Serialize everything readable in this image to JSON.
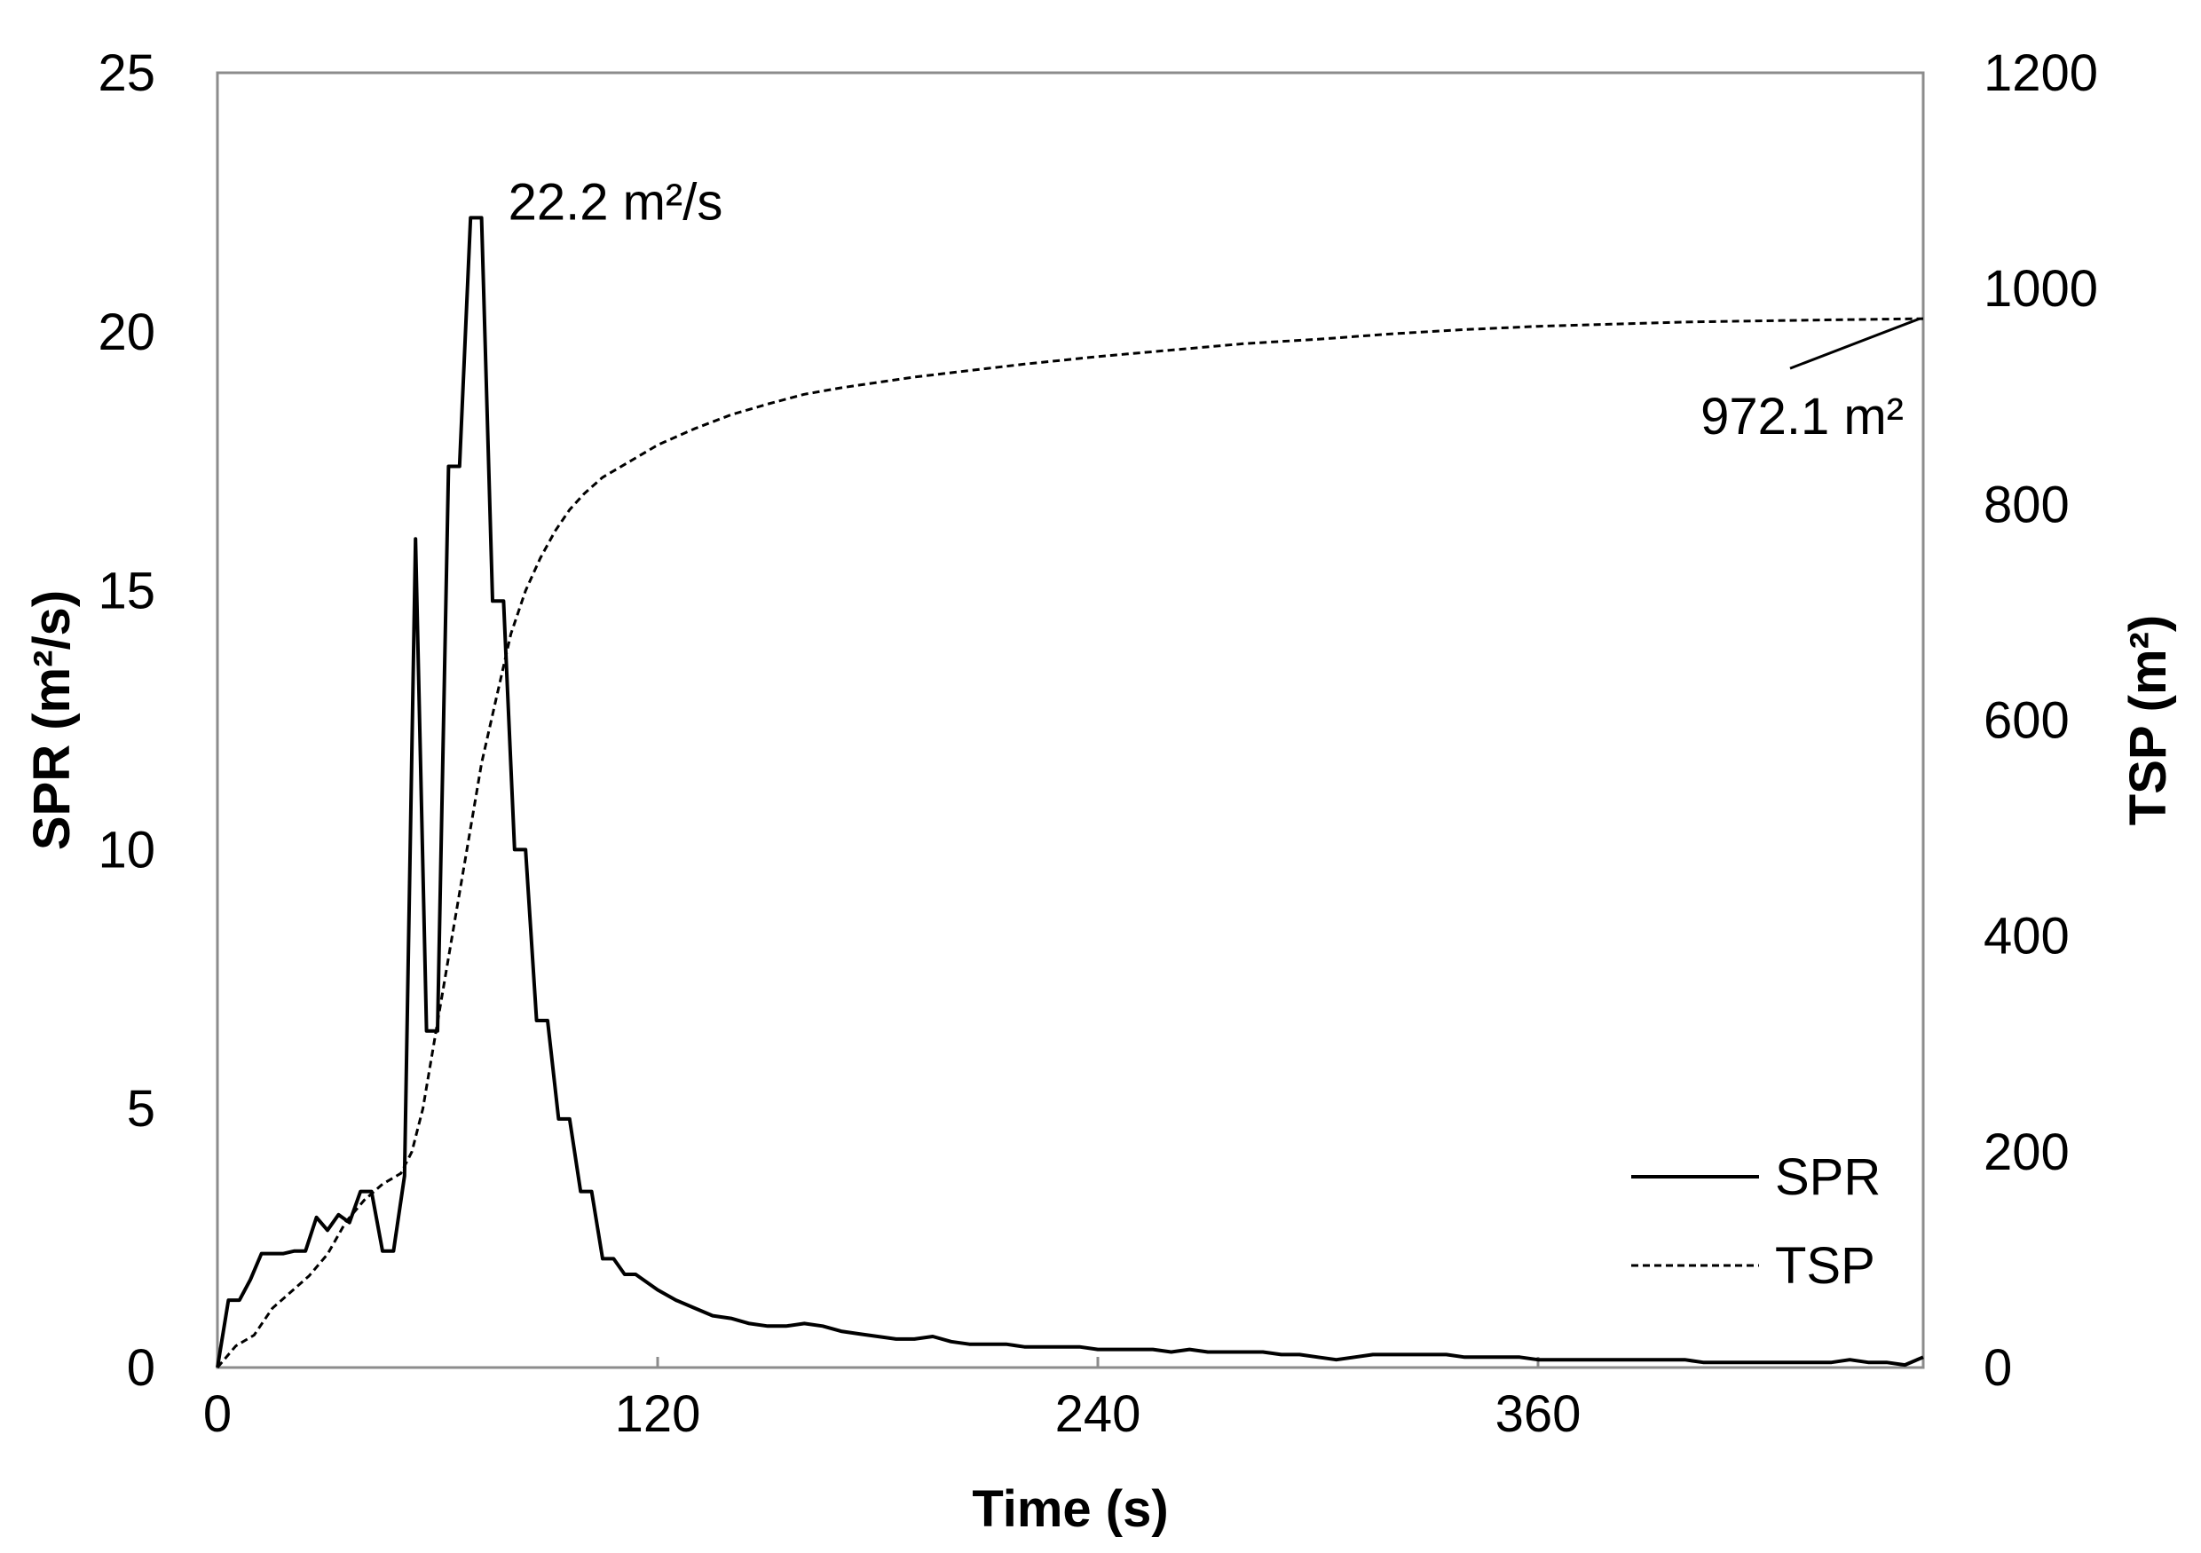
{
  "chart_data": {
    "type": "line",
    "xlabel": "Time (s)",
    "ylabel": "SPR (m²/s)",
    "y2label": "TSP (m²)",
    "xlim": [
      0,
      465
    ],
    "ylim": [
      0,
      25
    ],
    "y2lim": [
      0,
      1200
    ],
    "xticks": [
      0,
      120,
      240,
      360
    ],
    "yticks": [
      0,
      5,
      10,
      15,
      20,
      25
    ],
    "y2ticks": [
      0,
      200,
      400,
      600,
      800,
      1000,
      1200
    ],
    "grid": false,
    "legend_position": "bottom-right",
    "series": [
      {
        "name": "SPR",
        "axis": "left",
        "style": "solid",
        "x": [
          0,
          3,
          6,
          9,
          12,
          15,
          18,
          21,
          24,
          27,
          30,
          33,
          36,
          39,
          42,
          45,
          48,
          51,
          54,
          57,
          60,
          63,
          66,
          69,
          72,
          75,
          78,
          81,
          84,
          87,
          90,
          93,
          96,
          99,
          102,
          105,
          108,
          111,
          114,
          117,
          120,
          125,
          130,
          135,
          140,
          145,
          150,
          155,
          160,
          165,
          170,
          175,
          180,
          185,
          190,
          195,
          200,
          205,
          210,
          215,
          220,
          225,
          230,
          235,
          240,
          245,
          250,
          255,
          260,
          265,
          270,
          275,
          280,
          285,
          290,
          295,
          300,
          305,
          310,
          315,
          320,
          325,
          330,
          335,
          340,
          345,
          350,
          355,
          360,
          365,
          370,
          375,
          380,
          385,
          390,
          395,
          400,
          405,
          410,
          415,
          420,
          425,
          430,
          435,
          440,
          445,
          450,
          455,
          460,
          465
        ],
        "values": [
          0,
          1.3,
          1.3,
          1.7,
          2.2,
          2.2,
          2.2,
          2.25,
          2.25,
          2.9,
          2.65,
          2.95,
          2.8,
          3.4,
          3.4,
          2.25,
          2.25,
          3.7,
          16.0,
          6.5,
          6.5,
          17.4,
          17.4,
          22.2,
          22.2,
          14.8,
          14.8,
          10.0,
          10.0,
          6.7,
          6.7,
          4.8,
          4.8,
          3.4,
          3.4,
          2.1,
          2.1,
          1.8,
          1.8,
          1.65,
          1.5,
          1.3,
          1.15,
          1.0,
          0.95,
          0.85,
          0.8,
          0.8,
          0.85,
          0.8,
          0.7,
          0.65,
          0.6,
          0.55,
          0.55,
          0.6,
          0.5,
          0.45,
          0.45,
          0.45,
          0.4,
          0.4,
          0.4,
          0.4,
          0.35,
          0.35,
          0.35,
          0.35,
          0.3,
          0.35,
          0.3,
          0.3,
          0.3,
          0.3,
          0.25,
          0.25,
          0.2,
          0.15,
          0.2,
          0.25,
          0.25,
          0.25,
          0.25,
          0.25,
          0.2,
          0.2,
          0.2,
          0.2,
          0.15,
          0.15,
          0.15,
          0.15,
          0.15,
          0.15,
          0.15,
          0.15,
          0.15,
          0.1,
          0.1,
          0.1,
          0.1,
          0.1,
          0.1,
          0.1,
          0.1,
          0.15,
          0.1,
          0.1,
          0.05,
          0.2
        ]
      },
      {
        "name": "TSP",
        "axis": "right",
        "style": "dashed",
        "x": [
          0,
          5,
          10,
          15,
          20,
          25,
          30,
          35,
          40,
          45,
          50,
          53,
          56,
          60,
          64,
          68,
          72,
          76,
          80,
          84,
          88,
          92,
          96,
          100,
          105,
          110,
          120,
          130,
          140,
          150,
          160,
          170,
          180,
          190,
          200,
          210,
          220,
          240,
          260,
          280,
          300,
          320,
          340,
          360,
          380,
          400,
          420,
          440,
          465
        ],
        "values": [
          0,
          20,
          30,
          55,
          70,
          85,
          105,
          135,
          155,
          170,
          180,
          200,
          240,
          320,
          400,
          480,
          560,
          620,
          680,
          720,
          750,
          775,
          795,
          810,
          825,
          835,
          855,
          870,
          883,
          893,
          902,
          908,
          913,
          918,
          922,
          926,
          930,
          937,
          943,
          949,
          953,
          958,
          962,
          965,
          967,
          969,
          970,
          971,
          972.1
        ]
      }
    ],
    "annotations": [
      {
        "text": "22.2 m²/s",
        "x": 72,
        "y": 22.2,
        "axis": "left"
      },
      {
        "text": "972.1 m²",
        "x": 465,
        "y": 972.1,
        "axis": "right"
      }
    ]
  }
}
